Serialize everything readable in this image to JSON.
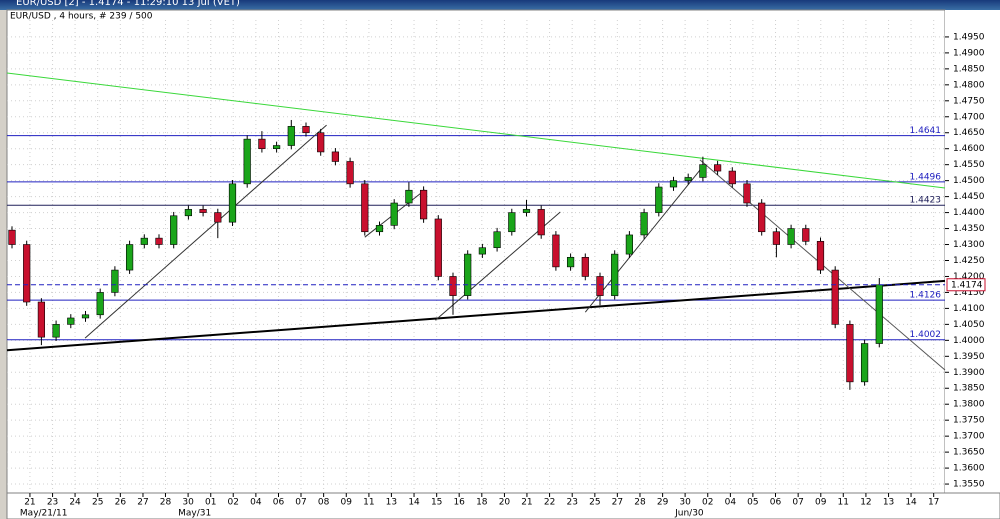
{
  "window_title": "EUR/USD [2] - 1.4174 - 11:29:10  13 Jul (VET)",
  "chart_data": {
    "type": "candlestick",
    "title": "EUR/USD , 4 hours, # 239 / 500",
    "up_color": "#1aa51a",
    "down_color": "#c8102e",
    "grid": true,
    "xlim": [
      -0.34,
      63.47
    ],
    "ylim": [
      1.3522,
      1.5003
    ],
    "open": [
      1.4345,
      1.43,
      1.412,
      1.401,
      1.405,
      1.407,
      1.408,
      1.415,
      1.422,
      1.43,
      1.432,
      1.43,
      1.439,
      1.441,
      1.44,
      1.437,
      1.449,
      1.463,
      1.46,
      1.461,
      1.467,
      1.465,
      1.459,
      1.456,
      1.449,
      1.434,
      1.436,
      1.443,
      1.447,
      1.438,
      1.42,
      1.414,
      1.427,
      1.429,
      1.434,
      1.44,
      1.441,
      1.433,
      1.423,
      1.426,
      1.42,
      1.414,
      1.427,
      1.433,
      1.44,
      1.448,
      1.45,
      1.451,
      1.455,
      1.453,
      1.449,
      1.443,
      1.434,
      1.43,
      1.435,
      1.431,
      1.422,
      1.405,
      1.387,
      1.399
    ],
    "high": [
      1.4357,
      1.4312,
      1.4132,
      1.4062,
      1.4082,
      1.4092,
      1.4162,
      1.4232,
      1.4312,
      1.4332,
      1.4332,
      1.4402,
      1.4422,
      1.4422,
      1.4412,
      1.4502,
      1.4642,
      1.4655,
      1.4622,
      1.469,
      1.4682,
      1.4662,
      1.4602,
      1.4572,
      1.4502,
      1.4372,
      1.4442,
      1.4495,
      1.4482,
      1.4392,
      1.4212,
      1.4282,
      1.4302,
      1.4352,
      1.4412,
      1.444,
      1.4422,
      1.4342,
      1.4272,
      1.4272,
      1.4212,
      1.4282,
      1.4342,
      1.4412,
      1.4492,
      1.4512,
      1.4522,
      1.4575,
      1.4562,
      1.4542,
      1.4502,
      1.4442,
      1.4352,
      1.4362,
      1.4362,
      1.4322,
      1.4232,
      1.4062,
      1.4002,
      1.4195
    ],
    "low": [
      1.4288,
      1.4108,
      1.3985,
      1.3998,
      1.4038,
      1.4058,
      1.4068,
      1.4138,
      1.4208,
      1.4288,
      1.4288,
      1.4288,
      1.4378,
      1.4388,
      1.432,
      1.4358,
      1.4478,
      1.4588,
      1.4588,
      1.4598,
      1.4638,
      1.4578,
      1.4548,
      1.4478,
      1.4328,
      1.4328,
      1.4348,
      1.4418,
      1.4368,
      1.4188,
      1.408,
      1.4128,
      1.4258,
      1.4278,
      1.4328,
      1.4388,
      1.4318,
      1.4218,
      1.4218,
      1.4188,
      1.411,
      1.4128,
      1.4258,
      1.4318,
      1.4388,
      1.4468,
      1.4488,
      1.4498,
      1.4518,
      1.4478,
      1.4418,
      1.4328,
      1.426,
      1.4288,
      1.4298,
      1.4208,
      1.4038,
      1.3845,
      1.3858,
      1.3978
    ],
    "close": [
      1.43,
      1.412,
      1.401,
      1.405,
      1.407,
      1.408,
      1.415,
      1.422,
      1.43,
      1.432,
      1.43,
      1.439,
      1.441,
      1.44,
      1.437,
      1.449,
      1.463,
      1.46,
      1.461,
      1.467,
      1.465,
      1.459,
      1.456,
      1.449,
      1.434,
      1.436,
      1.443,
      1.447,
      1.438,
      1.42,
      1.414,
      1.427,
      1.429,
      1.434,
      1.44,
      1.441,
      1.433,
      1.423,
      1.426,
      1.42,
      1.414,
      1.427,
      1.433,
      1.44,
      1.448,
      1.45,
      1.451,
      1.455,
      1.453,
      1.449,
      1.443,
      1.434,
      1.43,
      1.435,
      1.431,
      1.422,
      1.405,
      1.387,
      1.399,
      1.4174
    ],
    "yticks": [
      {
        "value": 1.355,
        "label": "1.3550"
      },
      {
        "value": 1.36,
        "label": "1.3600"
      },
      {
        "value": 1.365,
        "label": "1.3650"
      },
      {
        "value": 1.37,
        "label": "1.3700"
      },
      {
        "value": 1.375,
        "label": "1.3750"
      },
      {
        "value": 1.38,
        "label": "1.3800"
      },
      {
        "value": 1.385,
        "label": "1.3850"
      },
      {
        "value": 1.39,
        "label": "1.3900"
      },
      {
        "value": 1.395,
        "label": "1.3950"
      },
      {
        "value": 1.4,
        "label": "1.4000"
      },
      {
        "value": 1.405,
        "label": "1.4050"
      },
      {
        "value": 1.41,
        "label": "1.4100"
      },
      {
        "value": 1.415,
        "label": "1.4150"
      },
      {
        "value": 1.42,
        "label": "1.4200"
      },
      {
        "value": 1.425,
        "label": "1.4250"
      },
      {
        "value": 1.43,
        "label": "1.4300"
      },
      {
        "value": 1.435,
        "label": "1.4350"
      },
      {
        "value": 1.44,
        "label": "1.4400"
      },
      {
        "value": 1.445,
        "label": "1.4450"
      },
      {
        "value": 1.45,
        "label": "1.4500"
      },
      {
        "value": 1.455,
        "label": "1.4550"
      },
      {
        "value": 1.46,
        "label": "1.4600"
      },
      {
        "value": 1.465,
        "label": "1.4650"
      },
      {
        "value": 1.47,
        "label": "1.4700"
      },
      {
        "value": 1.475,
        "label": "1.4750"
      },
      {
        "value": 1.48,
        "label": "1.4800"
      },
      {
        "value": 1.485,
        "label": "1.4850"
      },
      {
        "value": 1.49,
        "label": "1.4900"
      },
      {
        "value": 1.495,
        "label": "1.4950"
      }
    ],
    "xticks": [
      {
        "value": 1.22,
        "label": "21"
      },
      {
        "value": 2.76,
        "label": "23"
      },
      {
        "value": 4.29,
        "label": "24"
      },
      {
        "value": 5.83,
        "label": "25"
      },
      {
        "value": 7.37,
        "label": "26"
      },
      {
        "value": 8.91,
        "label": "27"
      },
      {
        "value": 10.44,
        "label": "28"
      },
      {
        "value": 11.98,
        "label": "30"
      },
      {
        "value": 13.52,
        "label": "01"
      },
      {
        "value": 15.05,
        "label": "02"
      },
      {
        "value": 16.59,
        "label": "04"
      },
      {
        "value": 18.13,
        "label": "06"
      },
      {
        "value": 19.66,
        "label": "07"
      },
      {
        "value": 21.2,
        "label": "08"
      },
      {
        "value": 22.74,
        "label": "09"
      },
      {
        "value": 24.28,
        "label": "11"
      },
      {
        "value": 25.81,
        "label": "13"
      },
      {
        "value": 27.35,
        "label": "14"
      },
      {
        "value": 28.89,
        "label": "15"
      },
      {
        "value": 30.42,
        "label": "16"
      },
      {
        "value": 31.96,
        "label": "18"
      },
      {
        "value": 33.5,
        "label": "20"
      },
      {
        "value": 35.03,
        "label": "21"
      },
      {
        "value": 36.57,
        "label": "22"
      },
      {
        "value": 38.11,
        "label": "23"
      },
      {
        "value": 39.65,
        "label": "25"
      },
      {
        "value": 41.18,
        "label": "27"
      },
      {
        "value": 42.72,
        "label": "28"
      },
      {
        "value": 44.26,
        "label": "29"
      },
      {
        "value": 45.79,
        "label": "30"
      },
      {
        "value": 47.33,
        "label": "02"
      },
      {
        "value": 48.87,
        "label": "04"
      },
      {
        "value": 50.4,
        "label": "05"
      },
      {
        "value": 51.94,
        "label": "06"
      },
      {
        "value": 53.48,
        "label": "07"
      },
      {
        "value": 55.02,
        "label": "09"
      },
      {
        "value": 56.55,
        "label": "11"
      },
      {
        "value": 58.09,
        "label": "12"
      },
      {
        "value": 59.63,
        "label": "13"
      },
      {
        "value": 61.16,
        "label": "14"
      },
      {
        "value": 62.7,
        "label": "17"
      }
    ],
    "date_labels": [
      {
        "value": 1.22,
        "label": "May/21/11"
      },
      {
        "value": 11.98,
        "label": "May/31"
      },
      {
        "value": 45.79,
        "label": "Jun/30"
      }
    ],
    "levels": [
      {
        "value": 1.4641,
        "color": "#2020c0"
      },
      {
        "value": 1.4496,
        "color": "#2020c0"
      },
      {
        "value": 1.4423,
        "color": "#20205a"
      },
      {
        "value": 1.4126,
        "color": "#2020c0"
      },
      {
        "value": 1.4002,
        "color": "#2020c0"
      }
    ],
    "trendlines": [
      {
        "x": [
          -0.34,
          63.47
        ],
        "y": [
          1.4837,
          1.4477
        ],
        "color": "#3ad83a",
        "width": 1
      },
      {
        "x": [
          -0.34,
          63.47
        ],
        "y": [
          1.3969,
          1.4186
        ],
        "color": "#000000",
        "width": 2
      },
      {
        "x": [
          46.8,
          63.47
        ],
        "y": [
          1.4565,
          1.3907
        ],
        "color": "#555555",
        "width": 1
      },
      {
        "x": [
          4.97,
          21.4
        ],
        "y": [
          1.4007,
          1.4674
        ],
        "color": "#333333",
        "width": 1
      },
      {
        "x": [
          24.0,
          28.1
        ],
        "y": [
          1.4323,
          1.4471
        ],
        "color": "#333333",
        "width": 1
      },
      {
        "x": [
          28.8,
          37.3
        ],
        "y": [
          1.4063,
          1.4402
        ],
        "color": "#333333",
        "width": 1
      },
      {
        "x": [
          39.0,
          46.8
        ],
        "y": [
          1.4088,
          1.4533
        ],
        "color": "#333333",
        "width": 1
      }
    ]
  }
}
